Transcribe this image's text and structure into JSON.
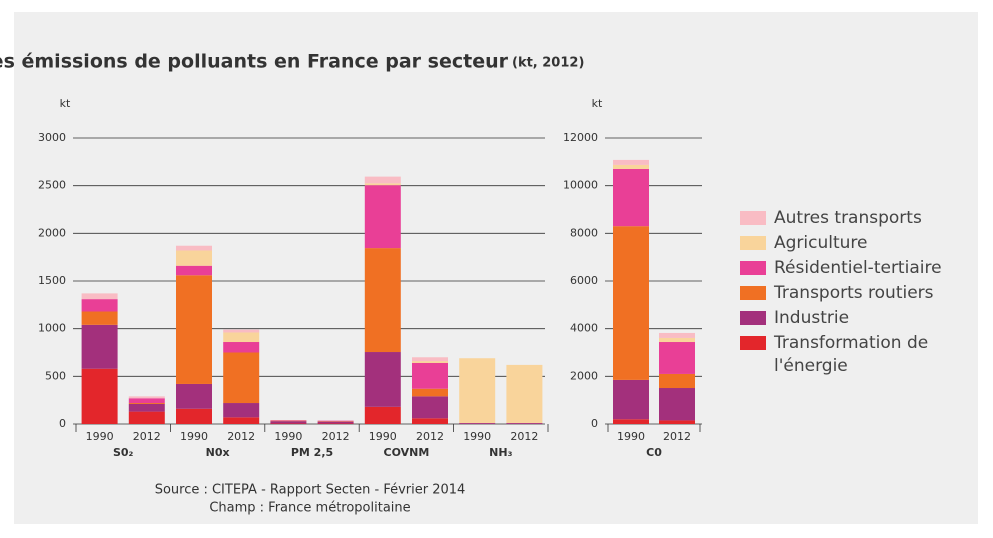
{
  "title": "Répartition des émissions de polluants en France par secteur",
  "subtitle": "(kt, 2012)",
  "source": [
    "Source : CITEPA - Rapport Secten - Février 2014",
    "Champ : France métropolitaine"
  ],
  "chart_data": [
    {
      "type": "bar",
      "stacked": true,
      "y_label": "kt",
      "grid": true,
      "ylim": [
        0,
        3000
      ],
      "yticks": [
        0,
        500,
        1000,
        1500,
        2000,
        2500,
        3000
      ],
      "groups": [
        "S0₂",
        "N0x",
        "PM 2,5",
        "COVNM",
        "NH₃"
      ],
      "categories": [
        "1990",
        "2012",
        "1990",
        "2012",
        "1990",
        "2012",
        "1990",
        "2012",
        "1990",
        "2012"
      ],
      "series": [
        {
          "name": "Transformation de l'énergie",
          "color": "#e3262b",
          "values": [
            580,
            130,
            160,
            70,
            5,
            5,
            180,
            60,
            0,
            0
          ]
        },
        {
          "name": "Industrie",
          "color": "#a3307c",
          "values": [
            460,
            80,
            260,
            150,
            25,
            20,
            575,
            230,
            10,
            10
          ]
        },
        {
          "name": "Transports routiers",
          "color": "#f07023",
          "values": [
            140,
            10,
            1140,
            530,
            5,
            5,
            1090,
            80,
            0,
            0
          ]
        },
        {
          "name": "Résidentiel-tertiaire",
          "color": "#e93f96",
          "values": [
            130,
            50,
            100,
            110,
            5,
            5,
            660,
            270,
            0,
            0
          ]
        },
        {
          "name": "Agriculture",
          "color": "#f9d49b",
          "values": [
            0,
            0,
            160,
            100,
            0,
            0,
            20,
            20,
            680,
            610
          ]
        },
        {
          "name": "Autres transports",
          "color": "#f9bcc4",
          "values": [
            60,
            20,
            50,
            30,
            0,
            0,
            70,
            40,
            0,
            0
          ]
        }
      ]
    },
    {
      "type": "bar",
      "stacked": true,
      "y_label": "kt",
      "grid": true,
      "ylim": [
        0,
        12000
      ],
      "yticks": [
        0,
        2000,
        4000,
        6000,
        8000,
        10000,
        12000
      ],
      "groups": [
        "C0"
      ],
      "categories": [
        "1990",
        "2012"
      ],
      "series": [
        {
          "color": "#e3262b",
          "values": [
            200,
            150
          ]
        },
        {
          "color": "#a3307c",
          "values": [
            1650,
            1360
          ]
        },
        {
          "color": "#f07023",
          "values": [
            6450,
            590
          ]
        },
        {
          "color": "#e93f96",
          "values": [
            2400,
            1340
          ]
        },
        {
          "color": "#f9d49b",
          "values": [
            170,
            170
          ]
        },
        {
          "color": "#f9bcc4",
          "values": [
            210,
            210
          ]
        }
      ]
    }
  ]
}
